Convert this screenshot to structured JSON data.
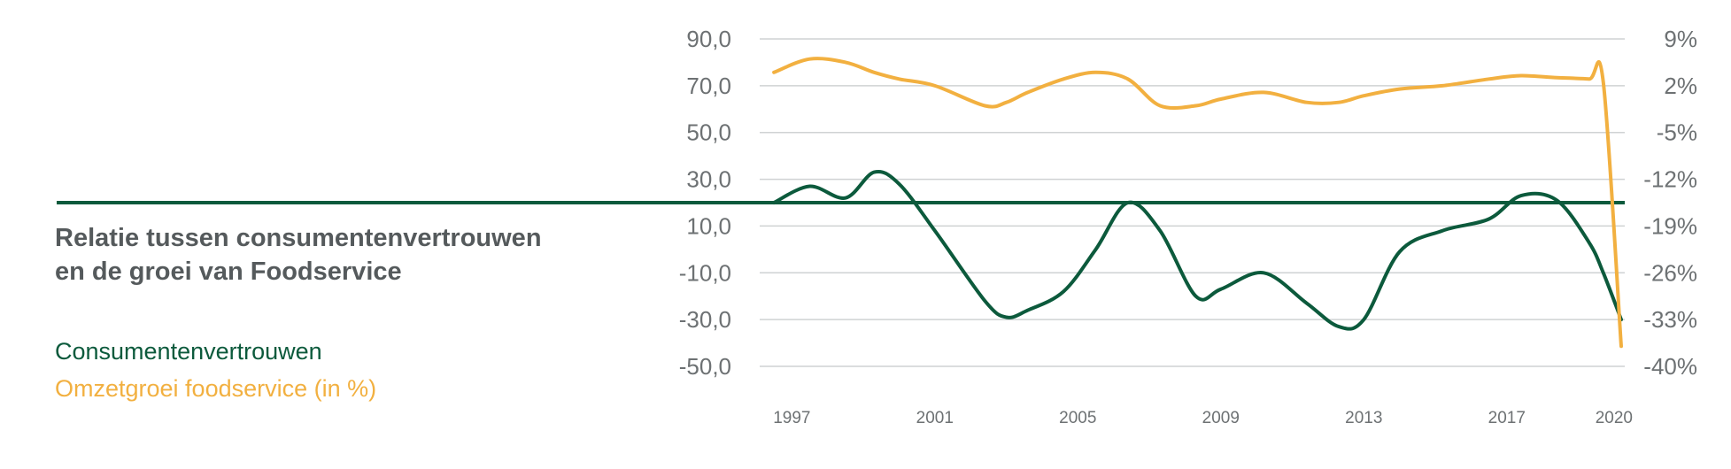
{
  "chart_data": {
    "type": "line",
    "title": "Relatie tussen consumentenvertrouwen en de groei van Foodservice",
    "title_lines": [
      "Relatie tussen consumentenvertrouwen",
      "en de groei van Foodservice"
    ],
    "x": [
      1996.5,
      1997.5,
      1998.5,
      1999.3,
      2000,
      2001,
      2002.4,
      2003,
      2003.6,
      2004.6,
      2005.5,
      2006.4,
      2007.3,
      2008.3,
      2009,
      2010.2,
      2011.4,
      2012.3,
      2013,
      2014,
      2015.2,
      2016.5,
      2017.4,
      2018.4,
      2019.3,
      2019.7,
      2020.2
    ],
    "x_ticks": [
      "1997",
      "2001",
      "2005",
      "2009",
      "2013",
      "2017",
      "2020"
    ],
    "x_tick_values": [
      1997,
      2001,
      2005,
      2009,
      2013,
      2017,
      2020
    ],
    "series": [
      {
        "name": "Consumentenvertrouwen",
        "axis": "left",
        "color": "#0c5a3c",
        "values": [
          20,
          27,
          22,
          33,
          28,
          8,
          -22,
          -29,
          -26,
          -18,
          0,
          20,
          8,
          -20,
          -17,
          -10,
          -23,
          -33,
          -30,
          -1,
          8,
          13,
          23,
          21,
          3,
          -10,
          -30
        ]
      },
      {
        "name": "Omzetgroei foodservice (in %)",
        "axis": "right",
        "color": "#f2b040",
        "values": [
          4,
          6,
          5.5,
          4,
          3,
          2,
          -1,
          -0.5,
          1,
          3,
          4,
          3,
          -1,
          -1,
          0,
          1,
          -0.5,
          -0.5,
          0.5,
          1.5,
          2,
          3,
          3.5,
          3.2,
          3,
          2.5,
          -37
        ]
      }
    ],
    "y_left": {
      "ylim": [
        -50,
        90
      ],
      "ticks": [
        "90,0",
        "70,0",
        "50,0",
        "30,0",
        "10,0",
        "-10,0",
        "-30,0",
        "-50,0"
      ],
      "tick_values": [
        90,
        70,
        50,
        30,
        10,
        -10,
        -30,
        -50
      ]
    },
    "y_right": {
      "ylim": [
        -40,
        9
      ],
      "ticks": [
        "9%",
        "2%",
        "-5%",
        "-12%",
        "-19%",
        "-26%",
        "-33%",
        "-40%"
      ],
      "tick_values": [
        9,
        2,
        -5,
        -12,
        -19,
        -26,
        -33,
        -40
      ]
    },
    "reference_line": {
      "axis": "left",
      "value": 20,
      "color": "#0c5a3c"
    },
    "grid": true,
    "legend": "left"
  },
  "legend": {
    "items": [
      "Consumentenvertrouwen",
      "Omzetgroei foodservice (in %)"
    ]
  }
}
